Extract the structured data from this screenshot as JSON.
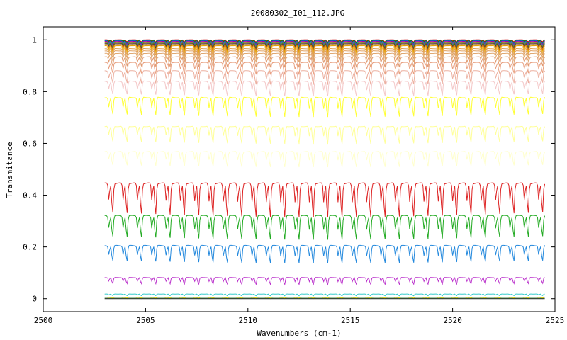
{
  "chart_data": {
    "type": "line",
    "title": "20080302_I01_112.JPG",
    "xlabel": "Wavenumbers (cm-1)",
    "ylabel": "Transmitance",
    "xlim": [
      2500,
      2525
    ],
    "ylim": [
      -0.05,
      1.05
    ],
    "x_ticks": [
      2500,
      2505,
      2510,
      2515,
      2520,
      2525
    ],
    "x_tick_labels": [
      "2500",
      "2505",
      "2510",
      "2515",
      "2520",
      "2525"
    ],
    "y_ticks": [
      0,
      0.2,
      0.4,
      0.6,
      0.8,
      1
    ],
    "y_tick_labels": [
      "0",
      "0.2",
      "0.4",
      "0.6",
      "0.8",
      "1"
    ],
    "grid": false,
    "legend": "none",
    "x_range_of_data": [
      2503.0,
      2524.5
    ],
    "line_spacing_cm1": 0.7,
    "series": [
      {
        "baseline": 1.0,
        "dip_depth": 0.01,
        "color": "#cc0000"
      },
      {
        "baseline": 0.998,
        "dip_depth": 0.012,
        "color": "#009900"
      },
      {
        "baseline": 0.996,
        "dip_depth": 0.014,
        "color": "#0066cc"
      },
      {
        "baseline": 0.994,
        "dip_depth": 0.016,
        "color": "#aa00aa"
      },
      {
        "baseline": 0.991,
        "dip_depth": 0.018,
        "color": "#00aaaa"
      },
      {
        "baseline": 0.988,
        "dip_depth": 0.02,
        "color": "#886600"
      },
      {
        "baseline": 0.985,
        "dip_depth": 0.022,
        "color": "#444444"
      },
      {
        "baseline": 0.981,
        "dip_depth": 0.024,
        "color": "#dd6600"
      },
      {
        "baseline": 0.977,
        "dip_depth": 0.026,
        "color": "#e6a000"
      },
      {
        "baseline": 0.972,
        "dip_depth": 0.028,
        "color": "#e8b030"
      },
      {
        "baseline": 0.966,
        "dip_depth": 0.03,
        "color": "#e0a050"
      },
      {
        "baseline": 0.958,
        "dip_depth": 0.034,
        "color": "#e0a060"
      },
      {
        "baseline": 0.948,
        "dip_depth": 0.038,
        "color": "#e0a870"
      },
      {
        "baseline": 0.934,
        "dip_depth": 0.044,
        "color": "#e09a70"
      },
      {
        "baseline": 0.912,
        "dip_depth": 0.05,
        "color": "#e8a080"
      },
      {
        "baseline": 0.88,
        "dip_depth": 0.058,
        "color": "#ecb0a0"
      },
      {
        "baseline": 0.84,
        "dip_depth": 0.064,
        "color": "#f4c8c8"
      },
      {
        "baseline": 0.778,
        "dip_depth": 0.085,
        "color": "#ffff33"
      },
      {
        "baseline": 0.666,
        "dip_depth": 0.075,
        "color": "#ffff99"
      },
      {
        "baseline": 0.568,
        "dip_depth": 0.065,
        "color": "#ffffcc"
      },
      {
        "baseline": 0.445,
        "dip_depth": 0.14,
        "color": "#dd2222"
      },
      {
        "baseline": 0.32,
        "dip_depth": 0.1,
        "color": "#22aa22"
      },
      {
        "baseline": 0.205,
        "dip_depth": 0.075,
        "color": "#2288dd"
      },
      {
        "baseline": 0.082,
        "dip_depth": 0.03,
        "color": "#bb33cc"
      },
      {
        "baseline": 0.018,
        "dip_depth": 0.008,
        "color": "#33cccc"
      },
      {
        "baseline": 0.006,
        "dip_depth": 0.004,
        "color": "#ddcc00"
      },
      {
        "baseline": 0.002,
        "dip_depth": 0.002,
        "color": "#448844"
      },
      {
        "baseline": 0.0,
        "dip_depth": 0.0,
        "color": "#333333"
      }
    ]
  }
}
